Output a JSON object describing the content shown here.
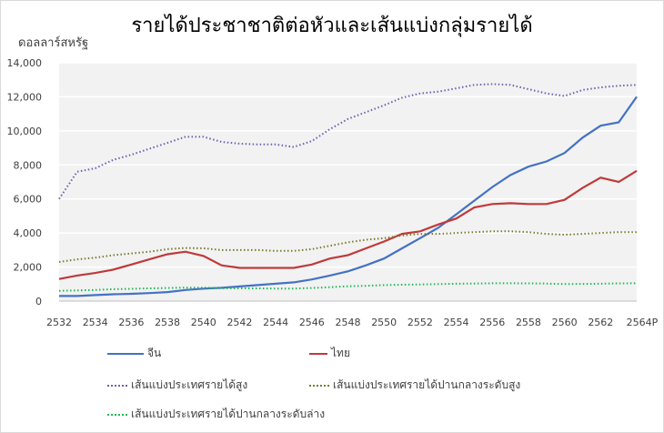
{
  "chart_data": {
    "type": "line",
    "title": "รายได้ประชาชาติต่อหัวและเส้นแบ่งกลุ่มรายได้",
    "ylabel": "ดอลลาร์สหรัฐ",
    "xlabel": "",
    "ylim": [
      0,
      14000
    ],
    "yticks": [
      "0",
      "2,000",
      "4,000",
      "6,000",
      "8,000",
      "10,000",
      "12,000",
      "14,000"
    ],
    "ytick_values": [
      0,
      2000,
      4000,
      6000,
      8000,
      10000,
      12000,
      14000
    ],
    "x": [
      2532,
      2533,
      2534,
      2535,
      2536,
      2537,
      2538,
      2539,
      2540,
      2541,
      2542,
      2543,
      2544,
      2545,
      2546,
      2547,
      2548,
      2549,
      2550,
      2551,
      2552,
      2553,
      2554,
      2555,
      2556,
      2557,
      2558,
      2559,
      2560,
      2561,
      2562,
      2563,
      2564
    ],
    "xticks": [
      "2532",
      "2534",
      "2536",
      "2538",
      "2540",
      "2542",
      "2544",
      "2546",
      "2548",
      "2550",
      "2552",
      "2554",
      "2556",
      "2558",
      "2560",
      "2562",
      "2564P"
    ],
    "xtick_values": [
      2532,
      2534,
      2536,
      2538,
      2540,
      2542,
      2544,
      2546,
      2548,
      2550,
      2552,
      2554,
      2556,
      2558,
      2560,
      2562,
      2564
    ],
    "grid": true,
    "legend_position": "bottom",
    "series": [
      {
        "name": "จีน",
        "color": "#4472c4",
        "style": "solid",
        "values": [
          300,
          300,
          350,
          400,
          430,
          470,
          530,
          650,
          730,
          780,
          860,
          940,
          1020,
          1100,
          1270,
          1500,
          1750,
          2100,
          2500,
          3100,
          3700,
          4300,
          5100,
          5900,
          6700,
          7400,
          7900,
          8200,
          8700,
          9600,
          10300,
          10500,
          12000
        ]
      },
      {
        "name": "ไทย",
        "color": "#c0393b",
        "style": "solid",
        "values": [
          1300,
          1500,
          1650,
          1850,
          2150,
          2450,
          2750,
          2900,
          2650,
          2100,
          1950,
          1950,
          1950,
          1950,
          2150,
          2500,
          2700,
          3100,
          3500,
          3950,
          4100,
          4500,
          4850,
          5500,
          5700,
          5750,
          5700,
          5700,
          5950,
          6650,
          7250,
          7000,
          7650
        ]
      },
      {
        "name": "เส้นแบ่งประเทศรายได้สูง",
        "color": "#7060b0",
        "style": "dotted",
        "values": [
          6000,
          7600,
          7800,
          8300,
          8600,
          8950,
          9300,
          9650,
          9650,
          9350,
          9250,
          9200,
          9200,
          9050,
          9400,
          10100,
          10700,
          11100,
          11500,
          11950,
          12200,
          12300,
          12500,
          12700,
          12750,
          12700,
          12450,
          12200,
          12050,
          12400,
          12550,
          12650,
          12700
        ]
      },
      {
        "name": "เส้นแบ่งประเทศรายได้ปานกลางระดับสูง",
        "color": "#7a7a2a",
        "style": "dotted",
        "values": [
          2300,
          2450,
          2550,
          2700,
          2800,
          2900,
          3050,
          3120,
          3100,
          3000,
          3000,
          3000,
          2950,
          2950,
          3050,
          3250,
          3450,
          3600,
          3700,
          3850,
          3950,
          3950,
          4000,
          4050,
          4100,
          4100,
          4050,
          3950,
          3900,
          3950,
          4000,
          4050,
          4050
        ]
      },
      {
        "name": "เส้นแบ่งประเทศรายได้ปานกลางระดับล่าง",
        "color": "#1db954",
        "style": "dotted",
        "values": [
          600,
          630,
          650,
          700,
          720,
          750,
          770,
          790,
          790,
          760,
          750,
          750,
          740,
          740,
          770,
          820,
          870,
          900,
          940,
          960,
          980,
          1000,
          1020,
          1030,
          1050,
          1050,
          1040,
          1030,
          1000,
          1010,
          1020,
          1040,
          1050
        ]
      }
    ]
  }
}
